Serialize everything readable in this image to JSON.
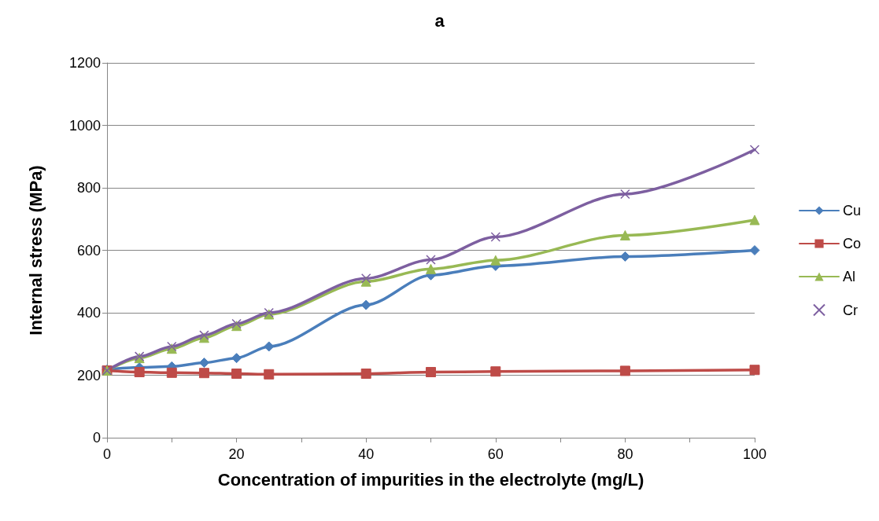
{
  "chart_data": {
    "type": "line",
    "title": "a",
    "xlabel": "Concentration of impurities in the electrolyte (mg/L)",
    "ylabel": "Internal stress (MPa)",
    "x": [
      0,
      5,
      10,
      15,
      20,
      25,
      40,
      50,
      60,
      80,
      100
    ],
    "xlim": [
      0,
      100
    ],
    "xticks": [
      0,
      {
        "value": 10,
        "label": null
      },
      20,
      {
        "value": 30,
        "label": null
      },
      40,
      {
        "value": 50,
        "label": null
      },
      60,
      {
        "value": 70,
        "label": null
      },
      80,
      {
        "value": 90,
        "label": null
      },
      100
    ],
    "ylim": [
      0,
      1200
    ],
    "yticks": [
      0,
      200,
      400,
      600,
      800,
      1000,
      1200
    ],
    "grid": "y",
    "legend": "right",
    "series": [
      {
        "name": "Cu",
        "color": "#4a7ebb",
        "marker": "diamond",
        "values": [
          218,
          225,
          228,
          240,
          255,
          292,
          425,
          520,
          550,
          580,
          600
        ]
      },
      {
        "name": "Co",
        "color": "#be4b48",
        "marker": "square",
        "values": [
          215,
          210,
          208,
          207,
          205,
          203,
          205,
          210,
          212,
          214,
          217
        ]
      },
      {
        "name": "Al",
        "color": "#98b954",
        "marker": "triangle",
        "values": [
          215,
          255,
          285,
          320,
          358,
          395,
          500,
          540,
          568,
          648,
          697
        ]
      },
      {
        "name": "Cr",
        "color": "#7d5fa0",
        "marker": "cross",
        "values": [
          215,
          260,
          292,
          328,
          365,
          400,
          510,
          570,
          643,
          780,
          922
        ]
      }
    ]
  }
}
